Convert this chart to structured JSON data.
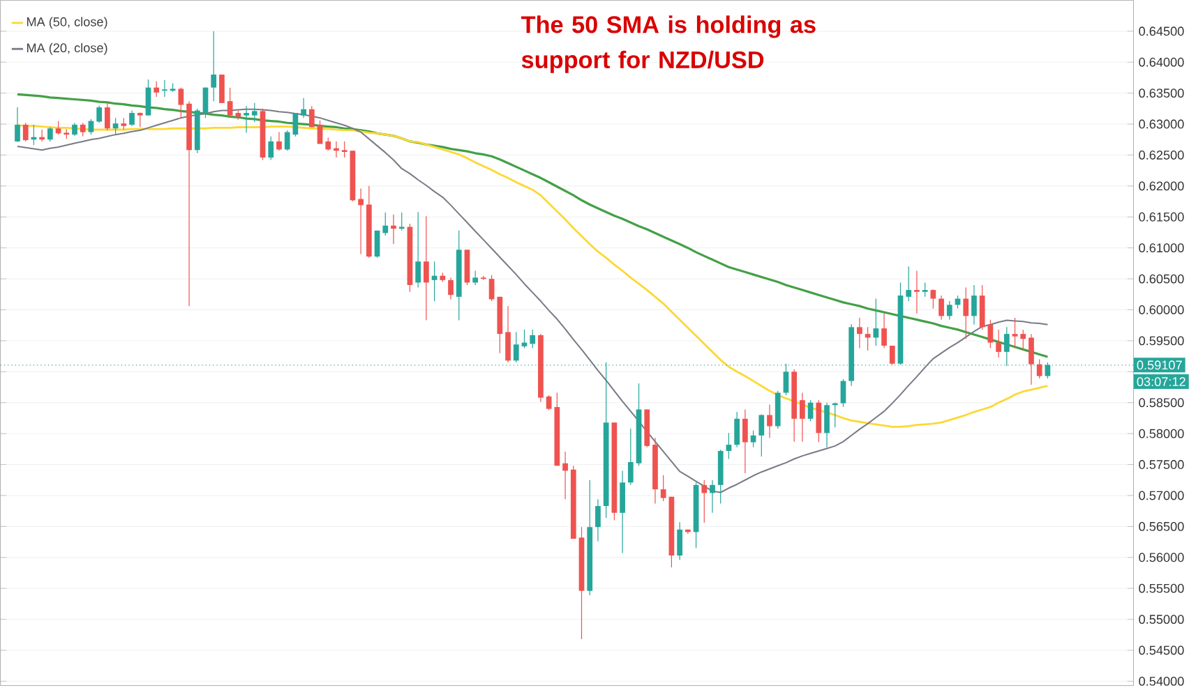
{
  "chart_data": {
    "type": "candlestick",
    "categories": [
      null,
      null,
      null,
      null,
      null,
      null,
      null,
      null,
      null,
      null,
      null,
      null,
      null,
      null,
      null,
      null,
      null,
      null,
      null,
      null,
      null,
      null,
      null,
      null,
      null,
      null,
      null,
      null,
      null,
      null,
      null,
      null,
      null,
      null,
      null,
      null,
      null,
      null,
      null,
      null,
      null,
      null,
      null,
      null,
      null,
      null,
      null,
      null,
      null,
      null,
      null,
      null,
      null,
      null,
      null,
      null,
      null,
      null,
      null,
      null,
      null,
      null,
      null,
      null,
      null,
      null,
      null,
      null,
      null,
      null,
      null,
      null,
      null,
      null,
      null,
      null,
      null,
      null,
      null,
      null,
      null,
      null,
      null,
      null,
      null,
      null,
      null,
      null,
      null,
      null,
      null,
      null,
      null,
      null,
      null,
      null,
      null,
      null,
      null,
      null,
      null,
      null,
      null,
      null,
      null,
      null,
      null,
      null,
      null,
      null,
      null,
      null,
      null,
      null,
      null,
      null,
      null,
      null,
      null,
      null,
      null,
      null,
      null,
      null,
      null,
      null,
      null
    ],
    "ylim": [
      0.5393,
      0.65
    ],
    "yticks": [
      {
        "value": 0.54,
        "label": "0.54000"
      },
      {
        "value": 0.545,
        "label": "0.54500"
      },
      {
        "value": 0.55,
        "label": "0.55000"
      },
      {
        "value": 0.555,
        "label": "0.55500"
      },
      {
        "value": 0.56,
        "label": "0.56000"
      },
      {
        "value": 0.565,
        "label": "0.56500"
      },
      {
        "value": 0.57,
        "label": "0.57000"
      },
      {
        "value": 0.575,
        "label": "0.57500"
      },
      {
        "value": 0.58,
        "label": "0.58000"
      },
      {
        "value": 0.585,
        "label": "0.58500"
      },
      {
        "value": 0.59,
        "label": null
      },
      {
        "value": 0.595,
        "label": "0.59500"
      },
      {
        "value": 0.6,
        "label": "0.60000"
      },
      {
        "value": 0.605,
        "label": "0.60500"
      },
      {
        "value": 0.61,
        "label": "0.61000"
      },
      {
        "value": 0.615,
        "label": "0.61500"
      },
      {
        "value": 0.62,
        "label": "0.62000"
      },
      {
        "value": 0.625,
        "label": "0.62500"
      },
      {
        "value": 0.63,
        "label": "0.63000"
      },
      {
        "value": 0.635,
        "label": "0.63500"
      },
      {
        "value": 0.64,
        "label": "0.64000"
      },
      {
        "value": 0.645,
        "label": "0.64500"
      }
    ],
    "grid": "y",
    "legend": "top left",
    "annotations": [
      "The 50 SMA is holding as support for NZD/USD",
      "03:07:12"
    ],
    "ref_lines": [
      {
        "axis": "y",
        "value": 0.59107,
        "label": "0.59107",
        "color": "#26a69a",
        "line_style": "dotted"
      }
    ],
    "series": [
      {
        "type": "candlestick",
        "ohlc": [
          [
            0.6272,
            0.6327,
            0.6271,
            0.6299
          ],
          [
            0.6299,
            0.6302,
            0.6272,
            0.6274
          ],
          [
            0.6275,
            0.6299,
            0.6266,
            0.6279
          ],
          [
            0.6279,
            0.6291,
            0.6272,
            0.6275
          ],
          [
            0.6275,
            0.6295,
            0.6272,
            0.6293
          ],
          [
            0.6293,
            0.6305,
            0.6283,
            0.6285
          ],
          [
            0.6286,
            0.6292,
            0.6276,
            0.6283
          ],
          [
            0.6283,
            0.6302,
            0.6281,
            0.6299
          ],
          [
            0.6299,
            0.6302,
            0.628,
            0.6287
          ],
          [
            0.6287,
            0.6308,
            0.6283,
            0.6305
          ],
          [
            0.6304,
            0.633,
            0.6302,
            0.6327
          ],
          [
            0.6327,
            0.6337,
            0.629,
            0.6293
          ],
          [
            0.6293,
            0.631,
            0.6283,
            0.6301
          ],
          [
            0.6301,
            0.631,
            0.6291,
            0.6297
          ],
          [
            0.6299,
            0.6322,
            0.6297,
            0.6318
          ],
          [
            0.6318,
            0.6319,
            0.6295,
            0.6314
          ],
          [
            0.6314,
            0.6372,
            0.6314,
            0.6359
          ],
          [
            0.6359,
            0.6369,
            0.6344,
            0.6351
          ],
          [
            0.6354,
            0.6371,
            0.6344,
            0.6356
          ],
          [
            0.6354,
            0.6366,
            0.6352,
            0.6357
          ],
          [
            0.6357,
            0.6359,
            0.631,
            0.6331
          ],
          [
            0.6333,
            0.6337,
            0.6006,
            0.6258
          ],
          [
            0.6258,
            0.6325,
            0.6253,
            0.6322
          ],
          [
            0.6318,
            0.6359,
            0.631,
            0.6359
          ],
          [
            0.6359,
            0.645,
            0.6337,
            0.638
          ],
          [
            0.638,
            0.638,
            0.6334,
            0.6334
          ],
          [
            0.6337,
            0.6359,
            0.631,
            0.6314
          ],
          [
            0.6318,
            0.6322,
            0.6307,
            0.6312
          ],
          [
            0.6314,
            0.6329,
            0.6286,
            0.6318
          ],
          [
            0.6314,
            0.6334,
            0.6303,
            0.6321
          ],
          [
            0.6321,
            0.6325,
            0.6242,
            0.6246
          ],
          [
            0.6246,
            0.628,
            0.6242,
            0.6272
          ],
          [
            0.6272,
            0.6287,
            0.6257,
            0.6259
          ],
          [
            0.6259,
            0.629,
            0.6257,
            0.6287
          ],
          [
            0.6283,
            0.6318,
            0.628,
            0.6318
          ],
          [
            0.6314,
            0.6342,
            0.631,
            0.6324
          ],
          [
            0.6324,
            0.6329,
            0.6295,
            0.6295
          ],
          [
            0.6299,
            0.6306,
            0.6268,
            0.6268
          ],
          [
            0.6272,
            0.6278,
            0.6257,
            0.6259
          ],
          [
            0.6261,
            0.6272,
            0.6246,
            0.6257
          ],
          [
            0.6258,
            0.6272,
            0.6246,
            0.6255
          ],
          [
            0.6257,
            0.6257,
            0.6175,
            0.6177
          ],
          [
            0.6179,
            0.6196,
            0.609,
            0.6169
          ],
          [
            0.617,
            0.62,
            0.6084,
            0.6086
          ],
          [
            0.6086,
            0.6128,
            0.6084,
            0.6128
          ],
          [
            0.6124,
            0.6157,
            0.612,
            0.6136
          ],
          [
            0.6136,
            0.6154,
            0.6106,
            0.6131
          ],
          [
            0.6131,
            0.6157,
            0.6128,
            0.6134
          ],
          [
            0.6134,
            0.6139,
            0.6029,
            0.604
          ],
          [
            0.6044,
            0.6158,
            0.6036,
            0.6078
          ],
          [
            0.6078,
            0.6151,
            0.5983,
            0.6044
          ],
          [
            0.6048,
            0.6078,
            0.6014,
            0.6055
          ],
          [
            0.6055,
            0.606,
            0.6045,
            0.6048
          ],
          [
            0.6048,
            0.6052,
            0.6017,
            0.6024
          ],
          [
            0.6021,
            0.6128,
            0.5983,
            0.6097
          ],
          [
            0.6097,
            0.6097,
            0.604,
            0.6044
          ],
          [
            0.6044,
            0.6063,
            0.604,
            0.6052
          ],
          [
            0.6052,
            0.6055,
            0.6048,
            0.605
          ],
          [
            0.605,
            0.6056,
            0.6014,
            0.6017
          ],
          [
            0.6021,
            0.6021,
            0.593,
            0.5961
          ],
          [
            0.5964,
            0.6006,
            0.5915,
            0.5918
          ],
          [
            0.5918,
            0.5964,
            0.5915,
            0.5944
          ],
          [
            0.5941,
            0.5968,
            0.5938,
            0.5947
          ],
          [
            0.5945,
            0.5968,
            0.5938,
            0.5959
          ],
          [
            0.5959,
            0.5961,
            0.5851,
            0.5858
          ],
          [
            0.586,
            0.5862,
            0.5838,
            0.584
          ],
          [
            0.5843,
            0.5866,
            0.5748,
            0.5748
          ],
          [
            0.5752,
            0.5771,
            0.5694,
            0.574
          ],
          [
            0.5742,
            0.5748,
            0.563,
            0.563
          ],
          [
            0.5632,
            0.5649,
            0.5468,
            0.5546
          ],
          [
            0.5546,
            0.5725,
            0.5539,
            0.5649
          ],
          [
            0.5649,
            0.5694,
            0.5626,
            0.5683
          ],
          [
            0.5683,
            0.5915,
            0.5664,
            0.5818
          ],
          [
            0.5818,
            0.5818,
            0.566,
            0.5672
          ],
          [
            0.5672,
            0.574,
            0.5607,
            0.5721
          ],
          [
            0.5721,
            0.5808,
            0.5717,
            0.5754
          ],
          [
            0.5752,
            0.5881,
            0.5748,
            0.5839
          ],
          [
            0.5839,
            0.5839,
            0.5778,
            0.578
          ],
          [
            0.5782,
            0.5793,
            0.5687,
            0.571
          ],
          [
            0.571,
            0.5733,
            0.5691,
            0.5696
          ],
          [
            0.5698,
            0.5698,
            0.5584,
            0.5603
          ],
          [
            0.5603,
            0.5657,
            0.5596,
            0.5645
          ],
          [
            0.5645,
            0.5645,
            0.5638,
            0.5641
          ],
          [
            0.5641,
            0.5721,
            0.5615,
            0.5717
          ],
          [
            0.5717,
            0.5725,
            0.5656,
            0.5704
          ],
          [
            0.5704,
            0.5725,
            0.5672,
            0.5717
          ],
          [
            0.5717,
            0.5774,
            0.5687,
            0.5772
          ],
          [
            0.5772,
            0.5801,
            0.5759,
            0.5782
          ],
          [
            0.5782,
            0.5835,
            0.5778,
            0.5824
          ],
          [
            0.5824,
            0.5839,
            0.5736,
            0.5786
          ],
          [
            0.5786,
            0.5805,
            0.5778,
            0.5797
          ],
          [
            0.5797,
            0.5831,
            0.5763,
            0.583
          ],
          [
            0.583,
            0.5847,
            0.5793,
            0.5812
          ],
          [
            0.5812,
            0.5869,
            0.5808,
            0.5866
          ],
          [
            0.5866,
            0.5913,
            0.5862,
            0.59
          ],
          [
            0.59,
            0.5904,
            0.5787,
            0.5824
          ],
          [
            0.5854,
            0.5866,
            0.5787,
            0.5824
          ],
          [
            0.5824,
            0.5854,
            0.582,
            0.585
          ],
          [
            0.585,
            0.5854,
            0.5786,
            0.5801
          ],
          [
            0.5801,
            0.585,
            0.5778,
            0.5846
          ],
          [
            0.5846,
            0.585,
            0.581,
            0.5849
          ],
          [
            0.5849,
            0.5888,
            0.5843,
            0.5885
          ],
          [
            0.5885,
            0.5977,
            0.5877,
            0.5972
          ],
          [
            0.5972,
            0.5987,
            0.5938,
            0.5961
          ],
          [
            0.5961,
            0.5972,
            0.5934,
            0.5955
          ],
          [
            0.5955,
            0.6018,
            0.5942,
            0.597
          ],
          [
            0.597,
            0.5995,
            0.5938,
            0.5942
          ],
          [
            0.5942,
            0.5942,
            0.5911,
            0.5913
          ],
          [
            0.5913,
            0.6044,
            0.5911,
            0.6023
          ],
          [
            0.6021,
            0.607,
            0.6014,
            0.6032
          ],
          [
            0.6032,
            0.6063,
            0.5994,
            0.6029
          ],
          [
            0.6029,
            0.6044,
            0.6021,
            0.6032
          ],
          [
            0.6032,
            0.6033,
            0.6002,
            0.6018
          ],
          [
            0.6018,
            0.6023,
            0.5984,
            0.599
          ],
          [
            0.599,
            0.6014,
            0.5984,
            0.6008
          ],
          [
            0.6008,
            0.6023,
            0.6002,
            0.6018
          ],
          [
            0.6018,
            0.6036,
            0.5953,
            0.599
          ],
          [
            0.599,
            0.604,
            0.5976,
            0.6023
          ],
          [
            0.6023,
            0.604,
            0.5968,
            0.5972
          ],
          [
            0.5976,
            0.5984,
            0.5938,
            0.5947
          ],
          [
            0.5947,
            0.5968,
            0.5923,
            0.5932
          ],
          [
            0.5932,
            0.5972,
            0.5909,
            0.5961
          ],
          [
            0.5961,
            0.5987,
            0.5938,
            0.5957
          ],
          [
            0.5961,
            0.5968,
            0.5934,
            0.5953
          ],
          [
            0.5955,
            0.5961,
            0.5879,
            0.5912
          ],
          [
            0.5912,
            0.592,
            0.5889,
            0.5893
          ],
          [
            0.5893,
            0.5915,
            0.5889,
            0.5911
          ]
        ],
        "colors": [
          "#26a69a",
          "#ef5350",
          "#26a69a",
          "#ef5350",
          "#26a69a",
          "#ef5350",
          "#ef5350",
          "#26a69a",
          "#ef5350",
          "#26a69a",
          "#26a69a",
          "#ef5350",
          "#26a69a",
          "#ef5350",
          "#26a69a",
          "#ef5350",
          "#26a69a",
          "#ef5350",
          "#26a69a",
          "#26a69a",
          "#ef5350",
          "#ef5350",
          "#26a69a",
          "#26a69a",
          "#26a69a",
          "#ef5350",
          "#ef5350",
          "#ef5350",
          "#26a69a",
          "#26a69a",
          "#ef5350",
          "#26a69a",
          "#ef5350",
          "#26a69a",
          "#26a69a",
          "#26a69a",
          "#ef5350",
          "#ef5350",
          "#ef5350",
          "#ef5350",
          "#ef5350",
          "#ef5350",
          "#ef5350",
          "#ef5350",
          "#26a69a",
          "#26a69a",
          "#ef5350",
          "#26a69a",
          "#ef5350",
          "#26a69a",
          "#ef5350",
          "#26a69a",
          "#ef5350",
          "#ef5350",
          "#26a69a",
          "#ef5350",
          "#26a69a",
          "#ef5350",
          "#ef5350",
          "#ef5350",
          "#ef5350",
          "#26a69a",
          "#26a69a",
          "#26a69a",
          "#ef5350",
          "#ef5350",
          "#ef5350",
          "#ef5350",
          "#ef5350",
          "#ef5350",
          "#26a69a",
          "#26a69a",
          "#26a69a",
          "#ef5350",
          "#26a69a",
          "#26a69a",
          "#26a69a",
          "#ef5350",
          "#ef5350",
          "#ef5350",
          "#ef5350",
          "#26a69a",
          "#ef5350",
          "#26a69a",
          "#ef5350",
          "#26a69a",
          "#26a69a",
          "#26a69a",
          "#26a69a",
          "#ef5350",
          "#26a69a",
          "#26a69a",
          "#ef5350",
          "#26a69a",
          "#26a69a",
          "#ef5350",
          "#ef5350",
          "#26a69a",
          "#ef5350",
          "#26a69a",
          "#26a69a",
          "#26a69a",
          "#26a69a",
          "#ef5350",
          "#ef5350",
          "#26a69a",
          "#ef5350",
          "#ef5350",
          "#26a69a",
          "#26a69a",
          "#ef5350",
          "#26a69a",
          "#ef5350",
          "#ef5350",
          "#26a69a",
          "#26a69a",
          "#ef5350",
          "#26a69a",
          "#ef5350",
          "#ef5350",
          "#ef5350",
          "#26a69a",
          "#ef5350",
          "#ef5350",
          "#ef5350",
          "#ef5350",
          "#26a69a"
        ]
      },
      {
        "type": "line",
        "color": "#43a047",
        "values": [
          0.6348,
          0.6347,
          0.6346,
          0.6345,
          0.6343,
          0.6342,
          0.6341,
          0.634,
          0.6339,
          0.6338,
          0.6336,
          0.6335,
          0.6333,
          0.6332,
          0.633,
          0.6329,
          0.6327,
          0.6326,
          0.6324,
          0.6323,
          0.6321,
          0.632,
          0.6318,
          0.6317,
          0.6315,
          0.6314,
          0.6312,
          0.6311,
          0.6309,
          0.6308,
          0.6306,
          0.6305,
          0.6304,
          0.6302,
          0.6301,
          0.63,
          0.6299,
          0.6297,
          0.6296,
          0.6295,
          0.6293,
          0.6292,
          0.629,
          0.6288,
          0.6285,
          0.6283,
          0.6281,
          0.6277,
          0.6272,
          0.627,
          0.6267,
          0.6265,
          0.6263,
          0.626,
          0.6258,
          0.6256,
          0.6253,
          0.6251,
          0.6248,
          0.6243,
          0.6237,
          0.6231,
          0.6225,
          0.6219,
          0.6213,
          0.6206,
          0.6199,
          0.6192,
          0.6185,
          0.6177,
          0.617,
          0.6164,
          0.6158,
          0.6152,
          0.6147,
          0.6141,
          0.6135,
          0.613,
          0.6124,
          0.6118,
          0.6112,
          0.6106,
          0.61,
          0.6093,
          0.6087,
          0.6081,
          0.6075,
          0.6069,
          0.6065,
          0.6061,
          0.6057,
          0.6053,
          0.6049,
          0.6045,
          0.604,
          0.6036,
          0.6032,
          0.6028,
          0.6024,
          0.602,
          0.6016,
          0.6012,
          0.6009,
          0.6006,
          0.6002,
          0.5999,
          0.5996,
          0.5993,
          0.599,
          0.5987,
          0.5984,
          0.5981,
          0.5978,
          0.5974,
          0.5971,
          0.5968,
          0.5964,
          0.596,
          0.5956,
          0.5952,
          0.5948,
          0.5944,
          0.594,
          0.5936,
          0.5932,
          0.5928,
          0.5924
        ]
      },
      {
        "type": "line",
        "name": "MA (50, close)",
        "color": "#fdd835",
        "values": [
          0.6298,
          0.6297,
          0.6297,
          0.6296,
          0.6295,
          0.6294,
          0.6294,
          0.6293,
          0.6292,
          0.6291,
          0.6291,
          0.6291,
          0.6291,
          0.6291,
          0.6292,
          0.6292,
          0.6292,
          0.6292,
          0.6292,
          0.6293,
          0.6293,
          0.6293,
          0.6293,
          0.6293,
          0.6294,
          0.6294,
          0.6294,
          0.6295,
          0.6295,
          0.6295,
          0.6295,
          0.6296,
          0.6296,
          0.6296,
          0.6295,
          0.6294,
          0.6293,
          0.6293,
          0.6292,
          0.6291,
          0.629,
          0.629,
          0.6288,
          0.6286,
          0.6285,
          0.6283,
          0.6281,
          0.6277,
          0.6272,
          0.6271,
          0.6267,
          0.6263,
          0.6259,
          0.6255,
          0.6251,
          0.6245,
          0.6238,
          0.6232,
          0.6226,
          0.6219,
          0.6213,
          0.6206,
          0.62,
          0.6194,
          0.6185,
          0.6172,
          0.6159,
          0.6146,
          0.6132,
          0.6119,
          0.6106,
          0.6094,
          0.6084,
          0.6073,
          0.6063,
          0.6052,
          0.6042,
          0.6032,
          0.6021,
          0.601,
          0.5997,
          0.5984,
          0.5971,
          0.5958,
          0.5945,
          0.5932,
          0.5919,
          0.5908,
          0.59,
          0.5893,
          0.5885,
          0.5877,
          0.5869,
          0.5862,
          0.5857,
          0.5852,
          0.5847,
          0.5842,
          0.5838,
          0.5834,
          0.583,
          0.5825,
          0.5821,
          0.5819,
          0.5817,
          0.5815,
          0.5813,
          0.5811,
          0.5811,
          0.5812,
          0.5814,
          0.5815,
          0.5816,
          0.5818,
          0.5822,
          0.5826,
          0.583,
          0.5835,
          0.5839,
          0.5843,
          0.585,
          0.5856,
          0.5863,
          0.5868,
          0.5871,
          0.5874,
          0.5877
        ]
      },
      {
        "type": "line",
        "name": "MA (20, close)",
        "color": "#787b86",
        "values": [
          0.6264,
          0.6262,
          0.626,
          0.6258,
          0.6261,
          0.6263,
          0.6266,
          0.6269,
          0.6272,
          0.6275,
          0.6277,
          0.628,
          0.6283,
          0.6285,
          0.6288,
          0.629,
          0.6294,
          0.6298,
          0.6302,
          0.6306,
          0.631,
          0.6313,
          0.6315,
          0.6317,
          0.632,
          0.6322,
          0.6322,
          0.6323,
          0.6324,
          0.6324,
          0.6323,
          0.6322,
          0.632,
          0.6319,
          0.6317,
          0.6315,
          0.6313,
          0.631,
          0.6306,
          0.6302,
          0.6298,
          0.6293,
          0.6287,
          0.6276,
          0.6265,
          0.6254,
          0.6242,
          0.6228,
          0.622,
          0.621,
          0.6201,
          0.6191,
          0.6182,
          0.6169,
          0.6155,
          0.6141,
          0.6127,
          0.6113,
          0.6099,
          0.6085,
          0.6071,
          0.6057,
          0.6042,
          0.6028,
          0.6014,
          0.5999,
          0.5985,
          0.5969,
          0.5952,
          0.5936,
          0.5919,
          0.5902,
          0.5886,
          0.5869,
          0.5852,
          0.5836,
          0.582,
          0.5803,
          0.5787,
          0.5771,
          0.5755,
          0.5739,
          0.5731,
          0.5723,
          0.5715,
          0.5707,
          0.5705,
          0.5712,
          0.5718,
          0.5725,
          0.5732,
          0.5738,
          0.5743,
          0.5748,
          0.5753,
          0.5759,
          0.5764,
          0.5768,
          0.5772,
          0.5776,
          0.578,
          0.5787,
          0.5797,
          0.5807,
          0.5816,
          0.5826,
          0.5836,
          0.5849,
          0.5863,
          0.5878,
          0.5892,
          0.5907,
          0.5921,
          0.593,
          0.5939,
          0.5947,
          0.5956,
          0.5965,
          0.5973,
          0.5976,
          0.598,
          0.5983,
          0.5982,
          0.5981,
          0.5979,
          0.5978,
          0.5976
        ]
      }
    ]
  }
}
